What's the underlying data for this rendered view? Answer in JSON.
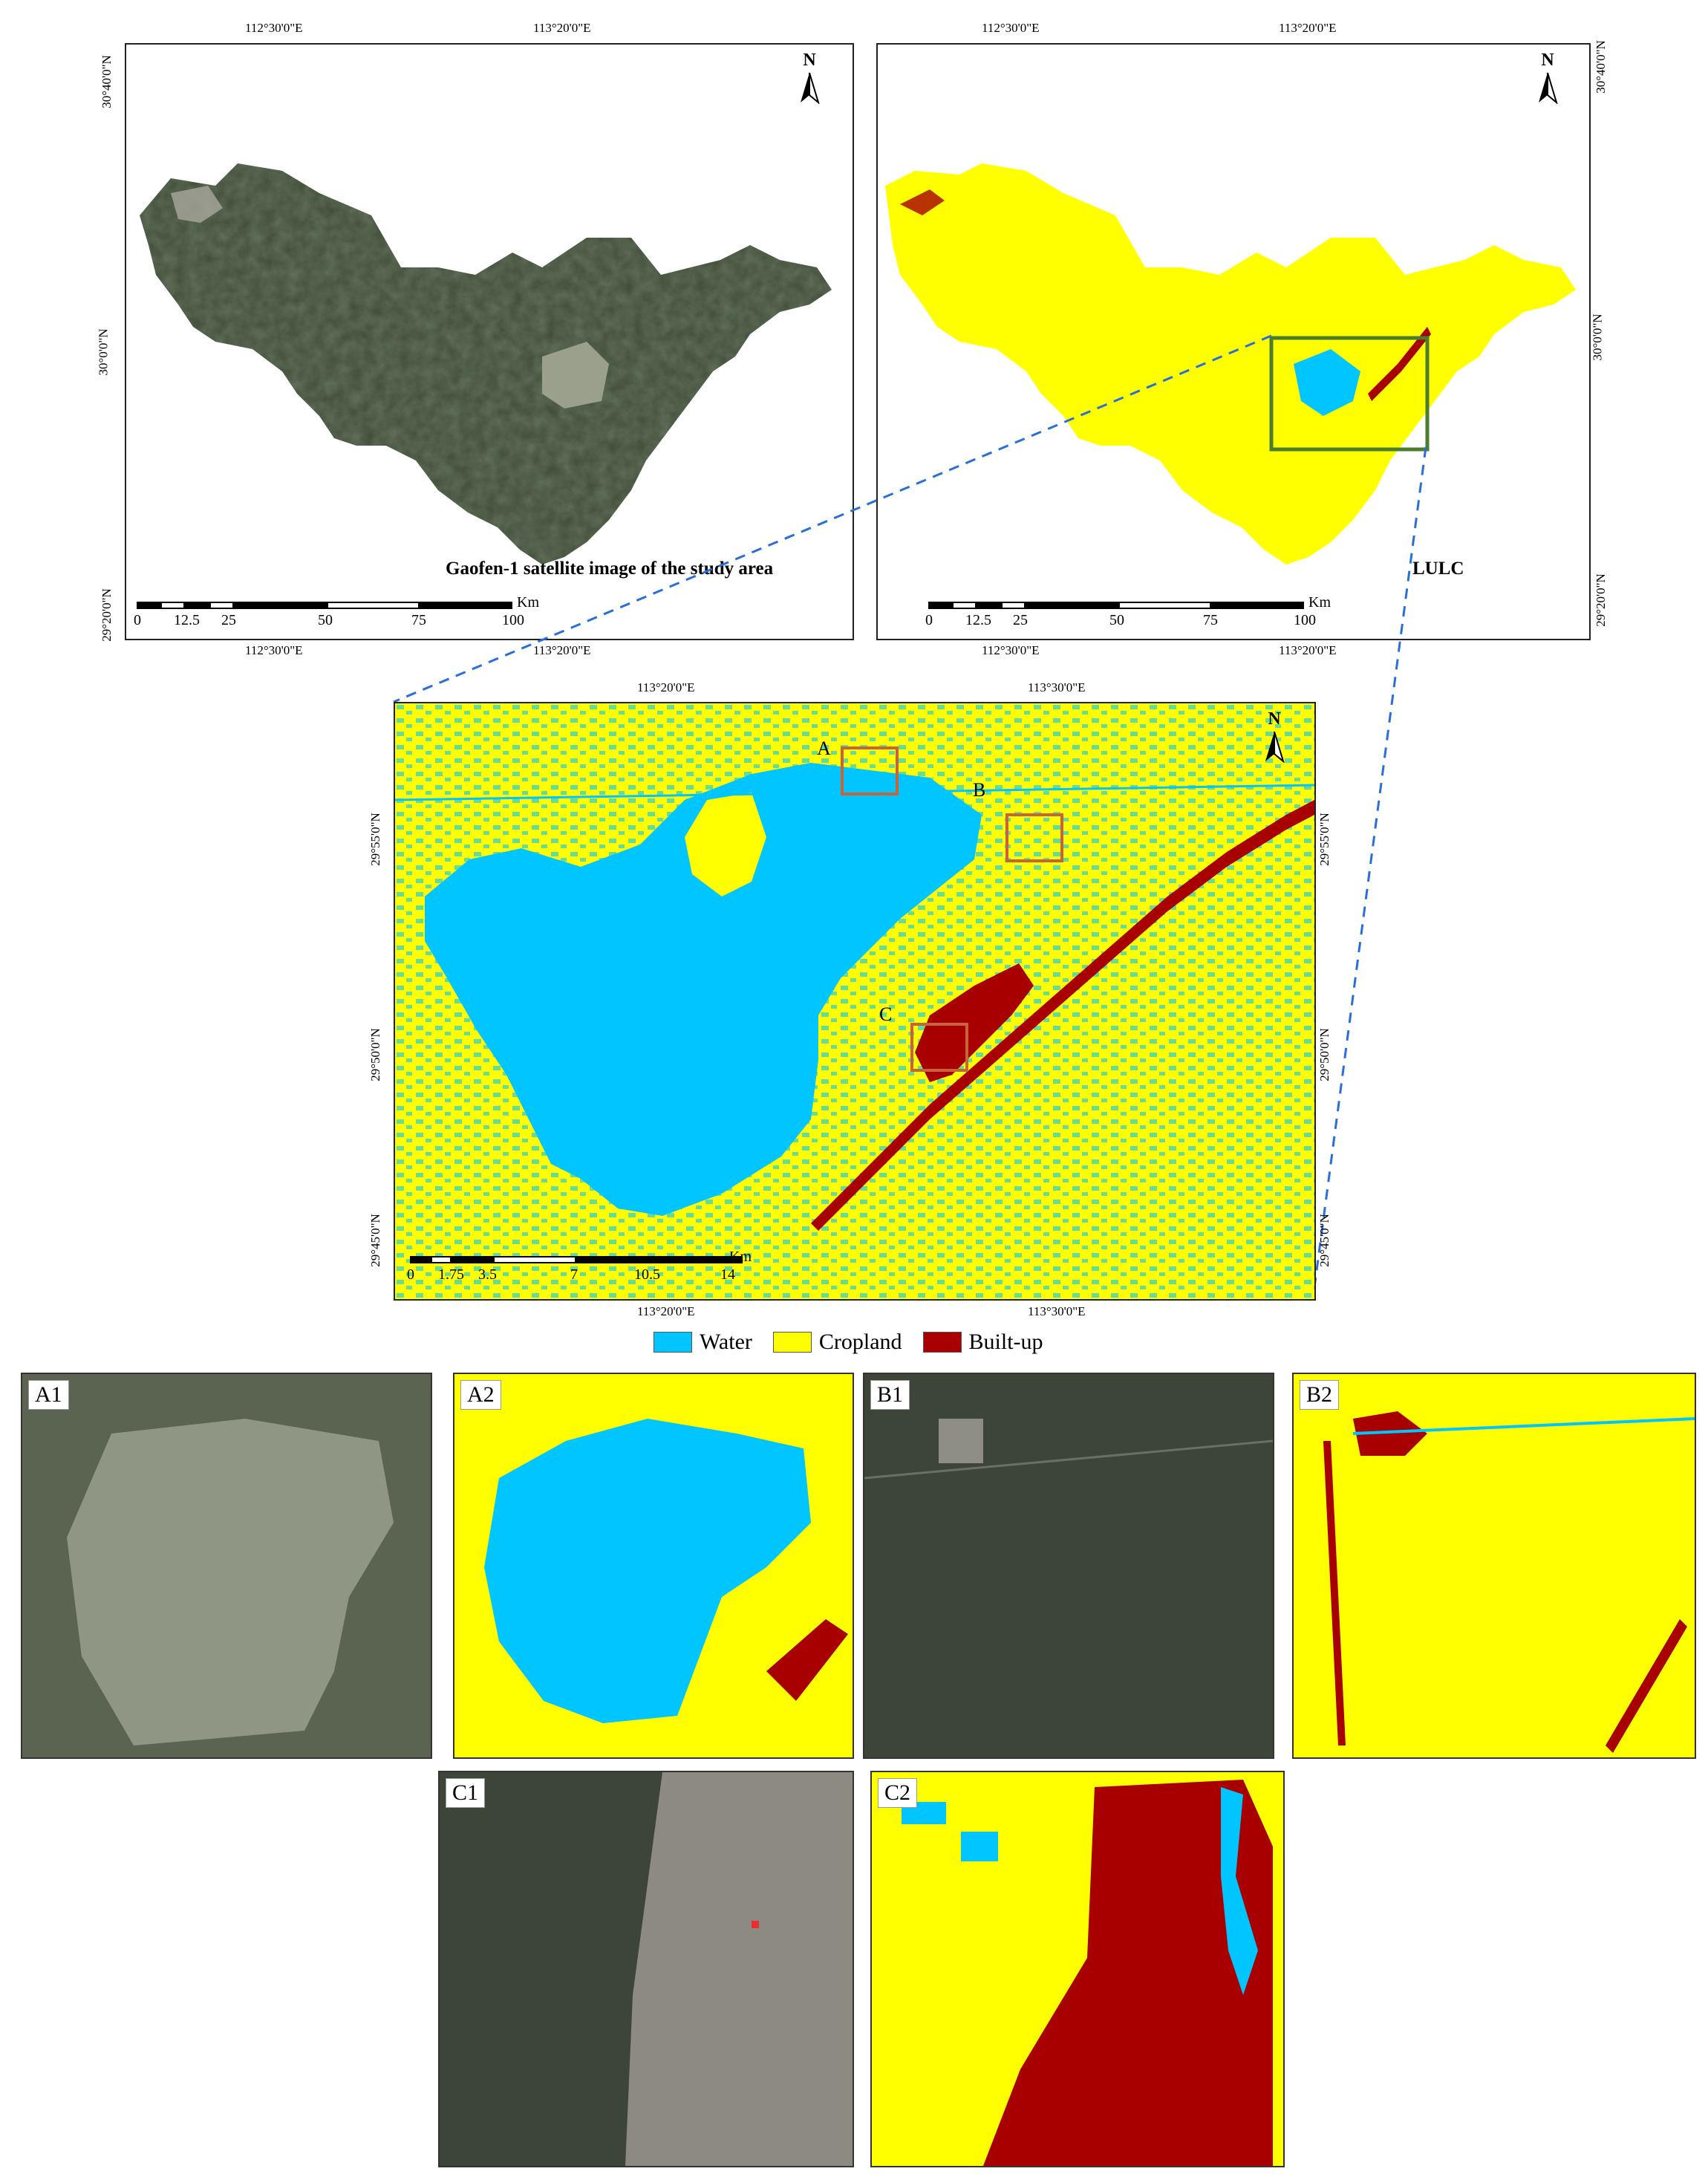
{
  "colors": {
    "water": "#00c5ff",
    "cropland": "#ffff00",
    "builtup": "#a80000",
    "satellite_dark": "#3e4a36",
    "lake_grey": "#9aa08c",
    "box_green": "#4a7d2e",
    "box_orange": "#c9643a",
    "dash_blue": "#2a6fd8"
  },
  "top_left": {
    "title": "Gaofen-1 satellite image of the study area",
    "top_coords": [
      "112°30'0\"E",
      "113°20'0\"E"
    ],
    "bottom_coords": [
      "112°30'0\"E",
      "113°20'0\"E"
    ],
    "left_coords": [
      "30°40'0\"N",
      "30°0'0\"N",
      "29°20'0\"N"
    ],
    "north": "N",
    "scale": {
      "unit": "Km",
      "labels": [
        "0",
        "12.5",
        "25",
        "50",
        "75",
        "100"
      ]
    }
  },
  "top_right": {
    "title": "LULC",
    "top_coords": [
      "112°30'0\"E",
      "113°20'0\"E"
    ],
    "bottom_coords": [
      "112°30'0\"E",
      "113°20'0\"E"
    ],
    "right_coords": [
      "30°40'0\"N",
      "30°0'0\"N",
      "29°20'0\"N"
    ],
    "north": "N",
    "scale": {
      "unit": "Km",
      "labels": [
        "0",
        "12.5",
        "25",
        "50",
        "75",
        "100"
      ]
    }
  },
  "middle": {
    "top_coords": [
      "113°20'0\"E",
      "113°30'0\"E"
    ],
    "bottom_coords": [
      "113°20'0\"E",
      "113°30'0\"E"
    ],
    "left_coords": [
      "29°55'0\"N",
      "29°50'0\"N",
      "29°45'0\"N"
    ],
    "right_coords": [
      "29°55'0\"N",
      "29°50'0\"N",
      "29°45'0\"N"
    ],
    "north": "N",
    "box_labels": [
      "A",
      "B",
      "C"
    ],
    "scale": {
      "unit": "Km",
      "labels": [
        "0",
        "1.75",
        "3.5",
        "7",
        "10.5",
        "14"
      ]
    }
  },
  "legend": [
    "Water",
    "Cropland",
    "Built-up"
  ],
  "thumbnails": [
    "A1",
    "A2",
    "B1",
    "B2",
    "C1",
    "C2"
  ]
}
